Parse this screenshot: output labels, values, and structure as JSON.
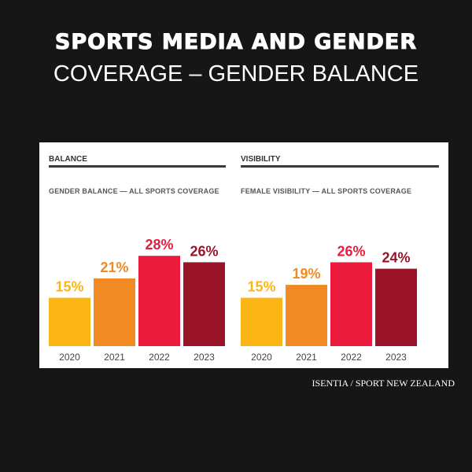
{
  "title_line1": "SPORTS MEDIA AND GENDER",
  "title_line2": "COVERAGE – GENDER BALANCE",
  "source": "ISENTIA / SPORT NEW ZEALAND",
  "colors": [
    "#FBB616",
    "#F28A23",
    "#EC1B3D",
    "#9A1428"
  ],
  "chart_data": [
    {
      "type": "bar",
      "section": "BALANCE",
      "title": "GENDER BALANCE — ALL SPORTS COVERAGE",
      "categories": [
        "2020",
        "2021",
        "2022",
        "2023"
      ],
      "values": [
        15,
        21,
        28,
        26
      ],
      "value_labels": [
        "15%",
        "21%",
        "28%",
        "26%"
      ],
      "unit": "%",
      "grid": false
    },
    {
      "type": "bar",
      "section": "VISIBILITY",
      "title": "FEMALE VISIBILITY — ALL SPORTS COVERAGE",
      "categories": [
        "2020",
        "2021",
        "2022",
        "2023"
      ],
      "values": [
        15,
        19,
        26,
        24
      ],
      "value_labels": [
        "15%",
        "19%",
        "26%",
        "24%"
      ],
      "unit": "%",
      "grid": false
    }
  ]
}
